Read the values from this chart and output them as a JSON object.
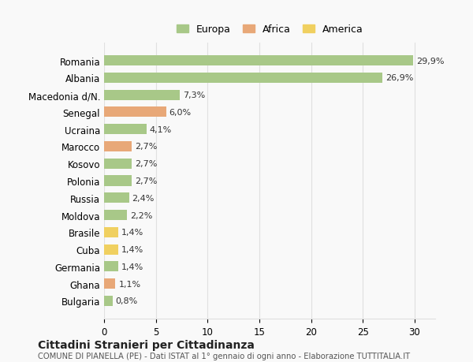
{
  "categories": [
    "Romania",
    "Albania",
    "Macedonia d/N.",
    "Senegal",
    "Ucraina",
    "Marocco",
    "Kosovo",
    "Polonia",
    "Russia",
    "Moldova",
    "Brasile",
    "Cuba",
    "Germania",
    "Ghana",
    "Bulgaria"
  ],
  "values": [
    29.9,
    26.9,
    7.3,
    6.0,
    4.1,
    2.7,
    2.7,
    2.7,
    2.4,
    2.2,
    1.4,
    1.4,
    1.4,
    1.1,
    0.8
  ],
  "labels": [
    "29,9%",
    "26,9%",
    "7,3%",
    "6,0%",
    "4,1%",
    "2,7%",
    "2,7%",
    "2,7%",
    "2,4%",
    "2,2%",
    "1,4%",
    "1,4%",
    "1,4%",
    "1,1%",
    "0,8%"
  ],
  "continents": [
    "Europa",
    "Europa",
    "Europa",
    "Africa",
    "Europa",
    "Africa",
    "Europa",
    "Europa",
    "Europa",
    "Europa",
    "America",
    "America",
    "Europa",
    "Africa",
    "Europa"
  ],
  "colors": {
    "Europa": "#a8c888",
    "Africa": "#e8a878",
    "America": "#f0d060"
  },
  "legend_colors": {
    "Europa": "#a8c888",
    "Africa": "#e8a878",
    "America": "#f0d060"
  },
  "xlim": [
    0,
    32
  ],
  "xticks": [
    0,
    5,
    10,
    15,
    20,
    25,
    30
  ],
  "title": "Cittadini Stranieri per Cittadinanza",
  "subtitle": "COMUNE DI PIANELLA (PE) - Dati ISTAT al 1° gennaio di ogni anno - Elaborazione TUTTITALIA.IT",
  "bg_color": "#f9f9f9",
  "grid_color": "#e0e0e0"
}
